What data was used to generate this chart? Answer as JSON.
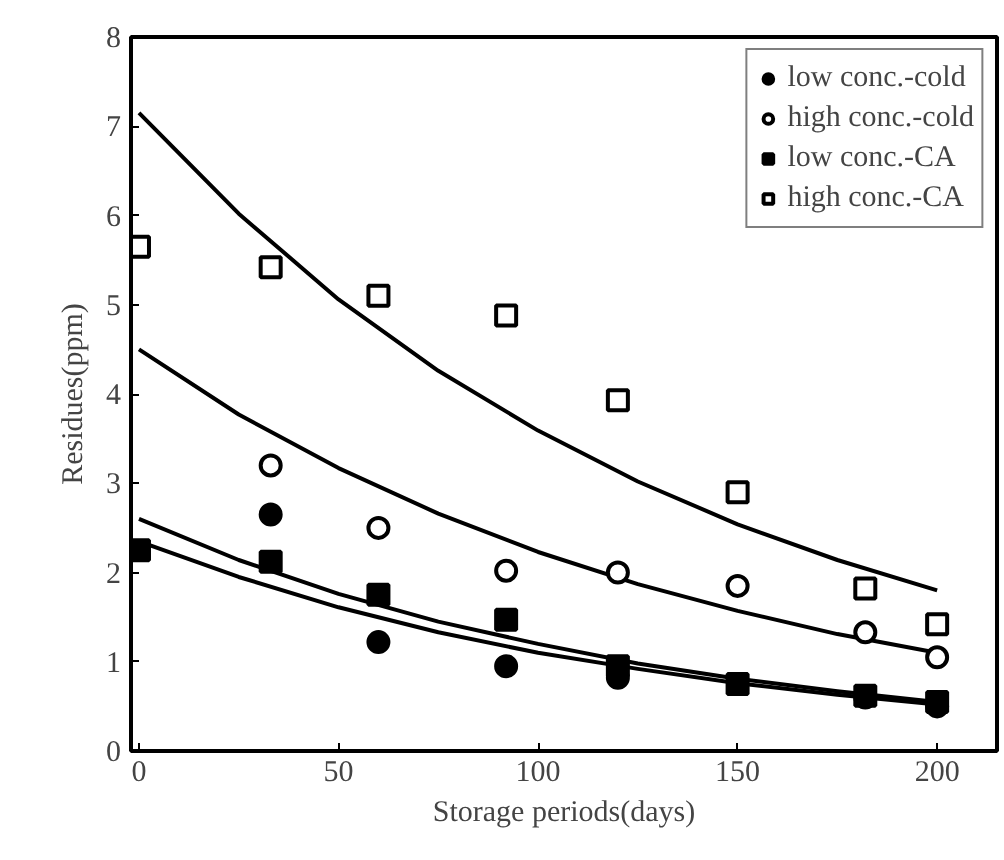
{
  "chart_data": {
    "type": "scatter",
    "xlabel": "Storage periods(days)",
    "ylabel": "Residues(ppm)",
    "xlim": [
      -2,
      215
    ],
    "ylim": [
      0,
      8
    ],
    "xticks": [
      0,
      50,
      100,
      150,
      200
    ],
    "yticks": [
      0,
      1,
      2,
      3,
      4,
      5,
      6,
      7,
      8
    ],
    "grid": false,
    "legend": "top right",
    "x": [
      0,
      33,
      60,
      92,
      120,
      150,
      182,
      200
    ],
    "series": [
      {
        "name": "low conc.-cold",
        "color": "#000000",
        "marker": "circle",
        "values": [
          null,
          2.65,
          1.22,
          0.95,
          0.82,
          null,
          0.6,
          0.5
        ]
      },
      {
        "name": "high conc.-cold",
        "color": "#000000",
        "marker": "circle",
        "values": [
          null,
          3.2,
          2.5,
          2.02,
          2.0,
          1.85,
          1.33,
          1.05
        ]
      },
      {
        "name": "low conc.-CA",
        "color": "#000000",
        "marker": "square",
        "values": [
          2.25,
          2.12,
          1.75,
          1.47,
          0.95,
          0.75,
          0.62,
          0.55
        ]
      },
      {
        "name": "high conc.-CA",
        "color": "#000000",
        "marker": "square",
        "values": [
          5.65,
          5.42,
          5.1,
          4.88,
          3.93,
          2.9,
          1.82,
          1.42
        ]
      },
      {
        "type": "line",
        "color": "#000000",
        "x": [
          0,
          25,
          50,
          75,
          100,
          125,
          150,
          175,
          200
        ],
        "values": [
          7.15,
          6.02,
          5.06,
          4.26,
          3.59,
          3.02,
          2.54,
          2.14,
          1.8
        ]
      },
      {
        "type": "line",
        "color": "#000000",
        "x": [
          0,
          25,
          50,
          75,
          100,
          125,
          150,
          175,
          200
        ],
        "values": [
          4.5,
          3.77,
          3.17,
          2.66,
          2.23,
          1.87,
          1.57,
          1.31,
          1.1
        ]
      },
      {
        "type": "line",
        "color": "#000000",
        "x": [
          0,
          25,
          50,
          75,
          100,
          125,
          150,
          175,
          200
        ],
        "values": [
          2.6,
          2.14,
          1.76,
          1.45,
          1.2,
          0.98,
          0.81,
          0.67,
          0.55
        ]
      },
      {
        "type": "line",
        "color": "#000000",
        "x": [
          0,
          25,
          50,
          75,
          100,
          125,
          150,
          175,
          200
        ],
        "values": [
          2.35,
          1.95,
          1.61,
          1.33,
          1.1,
          0.92,
          0.76,
          0.63,
          0.52
        ]
      }
    ]
  }
}
